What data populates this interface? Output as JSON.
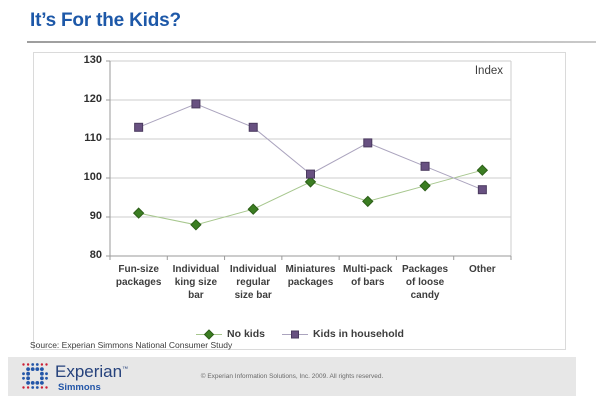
{
  "page": {
    "title": "It’s For the Kids?"
  },
  "chart_data": {
    "type": "line",
    "title": "It’s For the Kids?",
    "plot_corner_label": "Index",
    "categories": [
      "Fun-size packages",
      "Individual king size bar",
      "Individual regular size bar",
      "Miniatures packages",
      "Multi-pack of bars",
      "Packages of loose candy",
      "Other"
    ],
    "series": [
      {
        "name": "No kids",
        "marker": "diamond",
        "color": "#3b7d22",
        "edge_color": "#2c5e18",
        "line_color": "#a7c78e",
        "values": [
          91,
          88,
          92,
          99,
          94,
          98,
          102
        ]
      },
      {
        "name": "Kids in household",
        "marker": "square",
        "color": "#685181",
        "edge_color": "#4a3a5e",
        "line_color": "#aba4be",
        "values": [
          113,
          119,
          113,
          101,
          109,
          103,
          97
        ]
      }
    ],
    "ylim": [
      80,
      130
    ],
    "yticks": [
      80,
      90,
      100,
      110,
      120,
      130
    ],
    "grid": "horizontal",
    "legend_position": "bottom",
    "xlabel": "",
    "ylabel": ""
  },
  "source_note": "Source: Experian Simmons National Consumer Study",
  "footer": {
    "brand": "Experian",
    "brand_tm": "™",
    "sub_brand": "Simmons",
    "copyright": "© Experian Information Solutions, Inc. 2009.  All rights reserved."
  },
  "colors": {
    "title": "#1d58a8",
    "axis": "#9a9a9a",
    "gridline": "#cdcdcd",
    "footer_bg": "#e7e7e7",
    "logo_blue": "#2356a8",
    "logo_red": "#cc1f36"
  }
}
